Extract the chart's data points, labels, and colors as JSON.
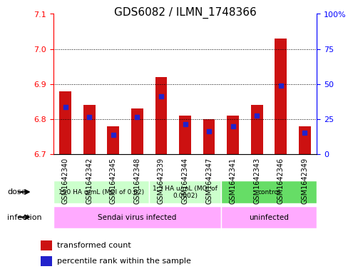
{
  "title": "GDS6082 / ILMN_1748366",
  "samples": [
    "GSM1642340",
    "GSM1642342",
    "GSM1642345",
    "GSM1642348",
    "GSM1642339",
    "GSM1642344",
    "GSM1642347",
    "GSM1642341",
    "GSM1642343",
    "GSM1642346",
    "GSM1642349"
  ],
  "red_values": [
    6.88,
    6.84,
    6.78,
    6.83,
    6.92,
    6.81,
    6.8,
    6.81,
    6.84,
    7.03,
    6.78
  ],
  "blue_values": [
    6.835,
    6.805,
    6.755,
    6.805,
    6.865,
    6.785,
    6.765,
    6.78,
    6.81,
    6.895,
    6.76
  ],
  "ymin": 6.7,
  "ymax": 7.1,
  "yticks": [
    6.7,
    6.8,
    6.9,
    7.0,
    7.1
  ],
  "right_yticks": [
    0,
    25,
    50,
    75,
    100
  ],
  "right_yticklabels": [
    "0",
    "25",
    "50",
    "75",
    "100%"
  ],
  "bar_color": "#cc1111",
  "blue_color": "#2222cc",
  "dose_groups": [
    {
      "label": "150 HA u/mL (MOI of 0.02)",
      "start": 0,
      "end": 4,
      "color": "#ccffcc"
    },
    {
      "label": "1.5 HA u/mL (MOI of\n0.0002)",
      "start": 4,
      "end": 7,
      "color": "#ccffcc"
    },
    {
      "label": "control",
      "start": 7,
      "end": 11,
      "color": "#66dd66"
    }
  ],
  "infection_groups": [
    {
      "label": "Sendai virus infected",
      "start": 0,
      "end": 7,
      "color": "#ffaaff"
    },
    {
      "label": "uninfected",
      "start": 7,
      "end": 11,
      "color": "#ffaaff"
    }
  ],
  "bg_color": "#dddddd",
  "plot_bg": "#ffffff",
  "border_color": "#000000"
}
